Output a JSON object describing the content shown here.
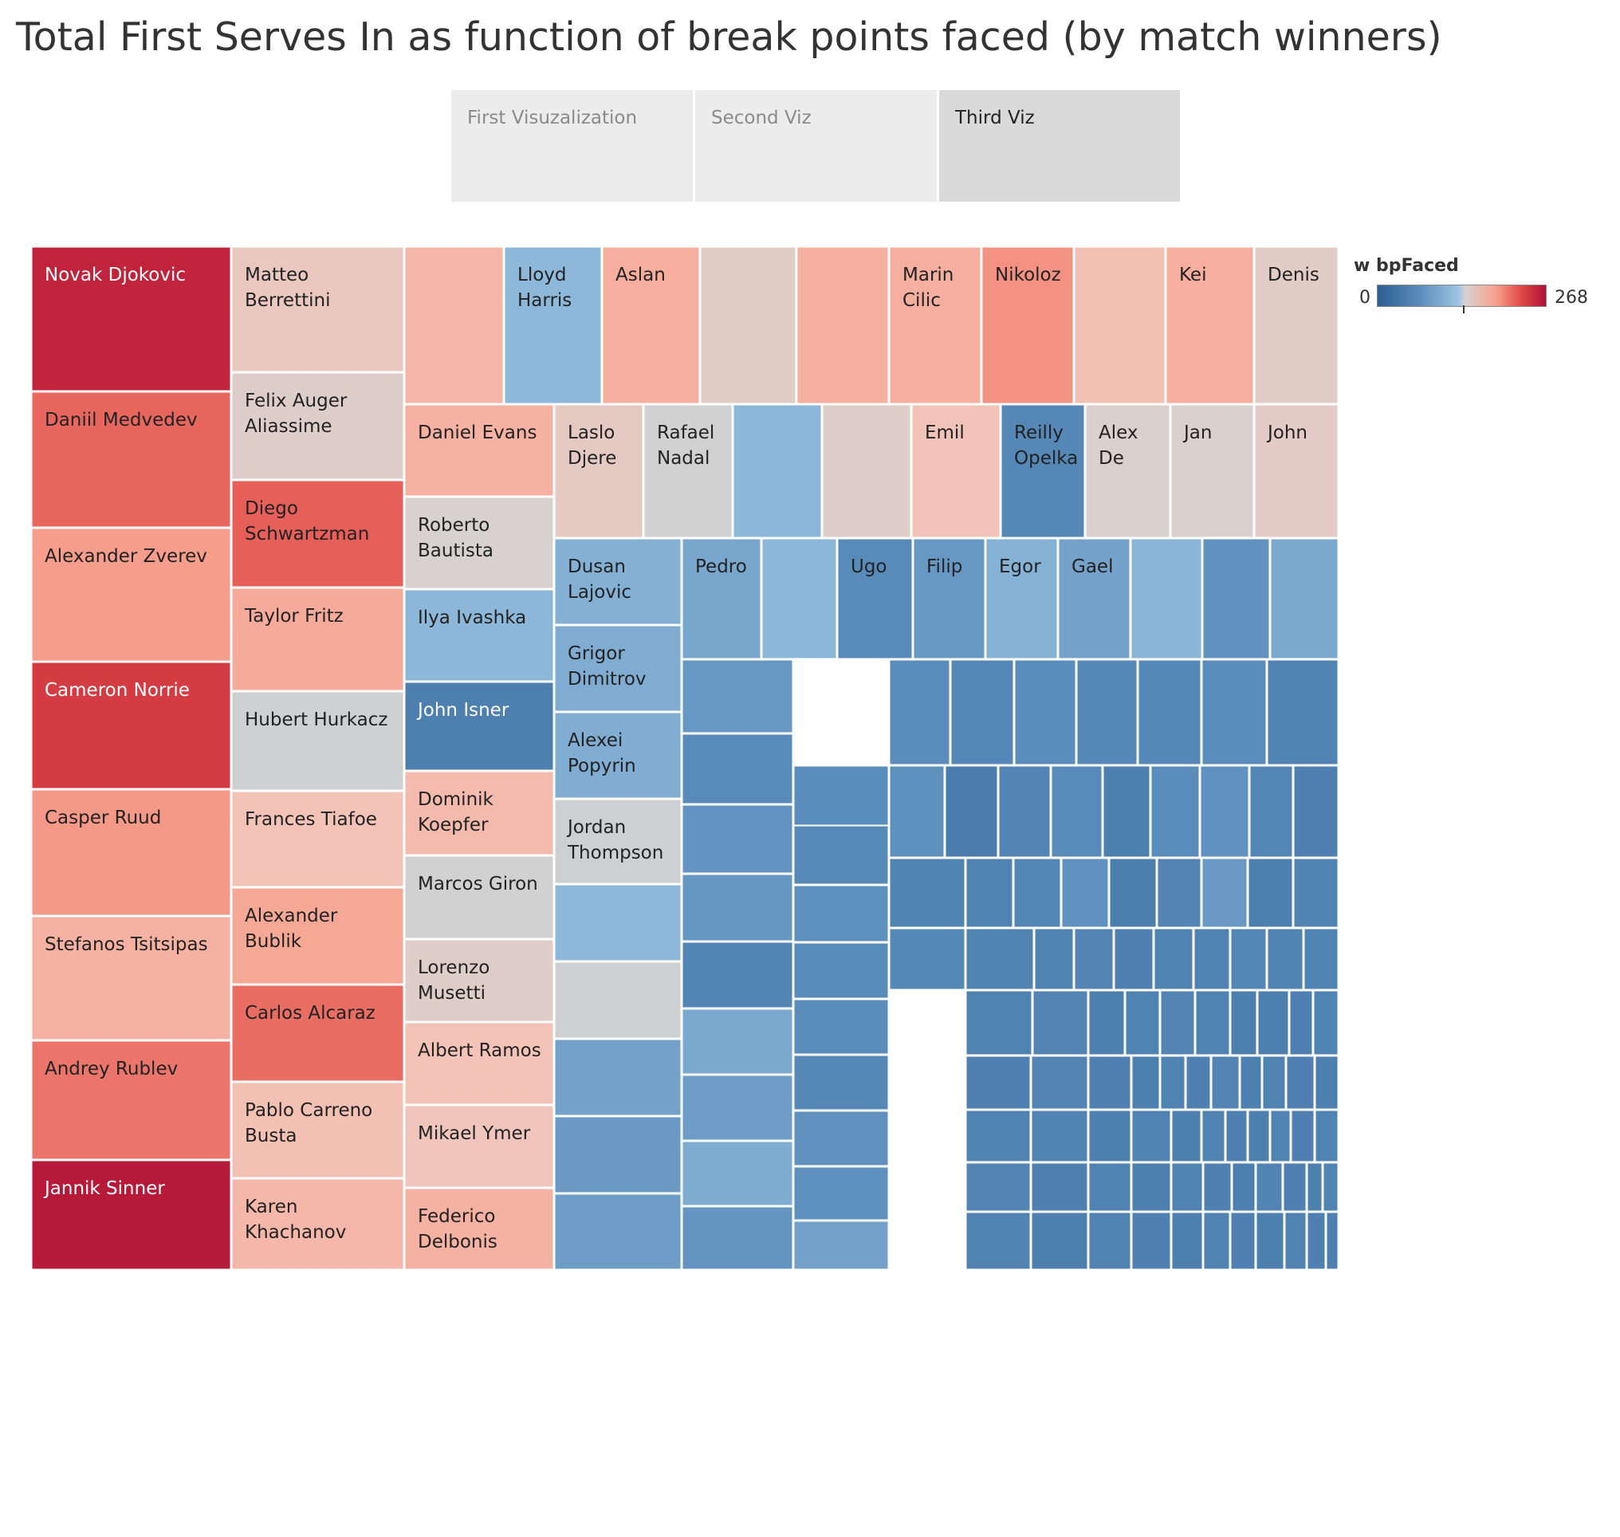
{
  "title": "Total First Serves In as function of break points faced (by match winners)",
  "tabs": [
    {
      "label": "First Visuzalization",
      "active": false
    },
    {
      "label": "Second Viz",
      "active": false
    },
    {
      "label": "Third Viz",
      "active": true
    }
  ],
  "legend": {
    "title": "w bpFaced",
    "min_label": "0",
    "max_label": "268",
    "low_color": "#2d5e92",
    "mid_color": "#d6d2d0",
    "high_color": "#b01036"
  },
  "chart_data": {
    "type": "treemap",
    "title": "Total First Serves In as function of break points faced (by match winners)",
    "size_measure": "Total First Serves In",
    "color_measure": "w bpFaced",
    "color_range": [
      0,
      268
    ],
    "labeled_leaves": [
      {
        "name": "Novak Djokovic",
        "bp_faced": 255
      },
      {
        "name": "Daniil Medvedev",
        "bp_faced": 215
      },
      {
        "name": "Alexander Zverev",
        "bp_faced": 190
      },
      {
        "name": "Cameron Norrie",
        "bp_faced": 238
      },
      {
        "name": "Casper Ruud",
        "bp_faced": 192
      },
      {
        "name": "Stefanos Tsitsipas",
        "bp_faced": 178
      },
      {
        "name": "Andrey Rublev",
        "bp_faced": 208
      },
      {
        "name": "Jannik Sinner",
        "bp_faced": 262
      },
      {
        "name": "Matteo Berrettini",
        "bp_faced": 158
      },
      {
        "name": "Felix Auger Aliassime",
        "bp_faced": 147
      },
      {
        "name": "Diego Schwartzman",
        "bp_faced": 218
      },
      {
        "name": "Taylor Fritz",
        "bp_faced": 182
      },
      {
        "name": "Hubert Hurkacz",
        "bp_faced": 136
      },
      {
        "name": "Frances Tiafoe",
        "bp_faced": 166
      },
      {
        "name": "Alexander Bublik",
        "bp_faced": 184
      },
      {
        "name": "Carlos Alcaraz",
        "bp_faced": 212
      },
      {
        "name": "Pablo Carreno Busta",
        "bp_faced": 168
      },
      {
        "name": "Karen Khachanov",
        "bp_faced": 174
      },
      {
        "name": "Lloyd Harris",
        "bp_faced": 103
      },
      {
        "name": "Aslan",
        "bp_faced": 180
      },
      {
        "name": "Marin Cilic",
        "bp_faced": 179
      },
      {
        "name": "Nikoloz",
        "bp_faced": 195
      },
      {
        "name": "Kei",
        "bp_faced": 180
      },
      {
        "name": "Denis",
        "bp_faced": 150
      },
      {
        "name": "Daniel Evans",
        "bp_faced": 178
      },
      {
        "name": "Laslo Djere",
        "bp_faced": 153
      },
      {
        "name": "Rafael Nadal",
        "bp_faced": 137
      },
      {
        "name": "Emil",
        "bp_faced": 165
      },
      {
        "name": "Reilly Opelka",
        "bp_faced": 60
      },
      {
        "name": "Alex De",
        "bp_faced": 143
      },
      {
        "name": "Jan",
        "bp_faced": 143
      },
      {
        "name": "John",
        "bp_faced": 152
      },
      {
        "name": "Roberto Bautista",
        "bp_faced": 140
      },
      {
        "name": "Ilya Ivashka",
        "bp_faced": 102
      },
      {
        "name": "John Isner",
        "bp_faced": 48
      },
      {
        "name": "Dominik Koepfer",
        "bp_faced": 172
      },
      {
        "name": "Marcos Giron",
        "bp_faced": 137
      },
      {
        "name": "Lorenzo Musetti",
        "bp_faced": 148
      },
      {
        "name": "Albert Ramos",
        "bp_faced": 166
      },
      {
        "name": "Mikael Ymer",
        "bp_faced": 163
      },
      {
        "name": "Federico Delbonis",
        "bp_faced": 178
      },
      {
        "name": "Dusan Lajovic",
        "bp_faced": 96
      },
      {
        "name": "Grigor Dimitrov",
        "bp_faced": 93
      },
      {
        "name": "Alexei Popyrin",
        "bp_faced": 94
      },
      {
        "name": "Jordan Thompson",
        "bp_faced": 135
      },
      {
        "name": "Pedro",
        "bp_faced": 88
      },
      {
        "name": "Ugo",
        "bp_faced": 66
      },
      {
        "name": "Filip",
        "bp_faced": 76
      },
      {
        "name": "Egor",
        "bp_faced": 97
      },
      {
        "name": "Gael",
        "bp_faced": 85
      }
    ]
  }
}
